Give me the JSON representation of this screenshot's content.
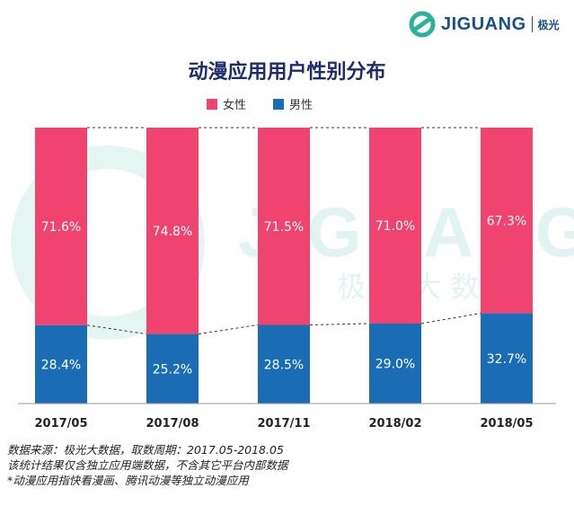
{
  "brand": {
    "name": "JIGUANG",
    "name_cn": "极光"
  },
  "colors": {
    "female": "#f0436f",
    "male": "#1a6cb4",
    "title": "#1c2d6b"
  },
  "watermark": {
    "en": "JIGUANG",
    "cn": "极 光 大 数 据"
  },
  "chart_data": {
    "type": "bar",
    "stacked": true,
    "percent": true,
    "title": "动漫应用用户性别分布",
    "categories": [
      "2017/05",
      "2017/08",
      "2017/11",
      "2018/02",
      "2018/05"
    ],
    "series": [
      {
        "name": "女性",
        "values": [
          71.6,
          74.8,
          71.5,
          71.0,
          67.3
        ],
        "labels": [
          "71.6%",
          "74.8%",
          "71.5%",
          "71.0%",
          "67.3%"
        ]
      },
      {
        "name": "男性",
        "values": [
          28.4,
          25.2,
          28.5,
          29.0,
          32.7
        ],
        "labels": [
          "28.4%",
          "25.2%",
          "28.5%",
          "29.0%",
          "32.7%"
        ]
      }
    ],
    "ylim": [
      0,
      100
    ],
    "legend": "top",
    "grid": false
  },
  "footnotes": [
    "数据来源：极光大数据，取数周期：2017.05-2018.05",
    "该统计结果仅含独立应用端数据，不含其它平台内部数据",
    "*动漫应用指快看漫画、腾讯动漫等独立动漫应用"
  ]
}
